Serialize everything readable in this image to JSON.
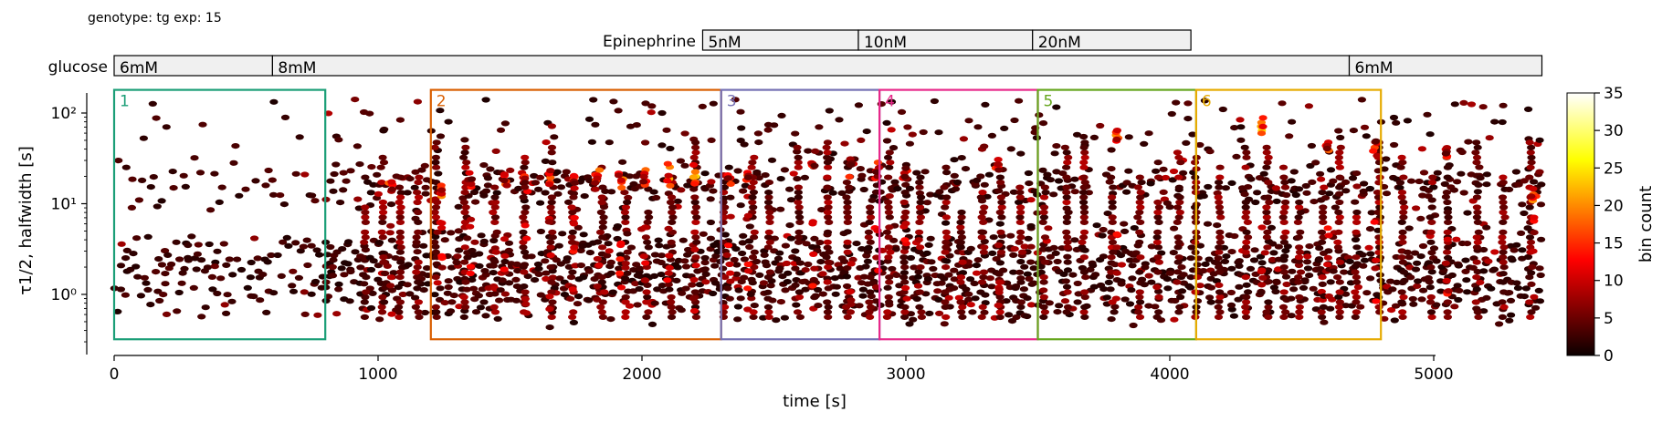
{
  "header": {
    "subtitle": "genotype: tg  exp: 15",
    "epinephrine_label": "Epinephrine",
    "glucose_label": "glucose"
  },
  "epinephrine_bar": [
    {
      "label": "5nM",
      "start": 2230,
      "end": 2820
    },
    {
      "label": "10nM",
      "start": 2820,
      "end": 3480
    },
    {
      "label": "20nM",
      "start": 3480,
      "end": 4080
    }
  ],
  "glucose_bar": [
    {
      "label": "6mM",
      "start": 0,
      "end": 600
    },
    {
      "label": "8mM",
      "start": 600,
      "end": 4680
    },
    {
      "label": "6mM",
      "start": 4680,
      "end": 5410
    }
  ],
  "colors": {
    "bar_fill": "#f0f0f0",
    "region_colors": [
      "#1b9e77",
      "#d95f02",
      "#7570b3",
      "#e7298a",
      "#66a61e",
      "#e6ab02"
    ]
  },
  "colormap": "hot",
  "chart_data": {
    "type": "heatmap",
    "xlabel": "time [s]",
    "ylabel": "τ1/2, halfwidth [s]",
    "xlim": [
      -100,
      5420
    ],
    "ylim": [
      0.25,
      200
    ],
    "y_scale": "log",
    "x_ticks": [
      0,
      1000,
      2000,
      3000,
      4000,
      5000
    ],
    "x_tick_labels": [
      "0",
      "1000",
      "2000",
      "3000",
      "4000",
      "5000"
    ],
    "y_ticks": [
      1,
      10,
      100
    ],
    "y_tick_labels": [
      "10⁰",
      "10¹",
      "10²"
    ],
    "colorbar": {
      "label": "bin count",
      "range": [
        0,
        35
      ],
      "ticks": [
        0,
        5,
        10,
        15,
        20,
        25,
        30,
        35
      ],
      "tick_labels": [
        "0",
        "5",
        "10",
        "15",
        "20",
        "25",
        "30",
        "35"
      ]
    },
    "regions": [
      {
        "label": "1",
        "x_start": 0,
        "x_end": 800
      },
      {
        "label": "2",
        "x_start": 1200,
        "x_end": 2300
      },
      {
        "label": "3",
        "x_start": 2300,
        "x_end": 2900
      },
      {
        "label": "4",
        "x_start": 2900,
        "x_end": 3500
      },
      {
        "label": "5",
        "x_start": 3500,
        "x_end": 4100
      },
      {
        "label": "6",
        "x_start": 4100,
        "x_end": 4800
      }
    ],
    "region_y_range": [
      0.32,
      180
    ],
    "hotspots": [
      {
        "t": 1050,
        "h": 16,
        "c": 18
      },
      {
        "t": 1240,
        "h": 14,
        "c": 20
      },
      {
        "t": 1350,
        "h": 18,
        "c": 16
      },
      {
        "t": 1480,
        "h": 19,
        "c": 18
      },
      {
        "t": 1560,
        "h": 17,
        "c": 15
      },
      {
        "t": 1650,
        "h": 19,
        "c": 20
      },
      {
        "t": 1740,
        "h": 18,
        "c": 17
      },
      {
        "t": 1830,
        "h": 20,
        "c": 19
      },
      {
        "t": 1920,
        "h": 19,
        "c": 20
      },
      {
        "t": 2010,
        "h": 20,
        "c": 18
      },
      {
        "t": 2100,
        "h": 20,
        "c": 22
      },
      {
        "t": 2200,
        "h": 20,
        "c": 24
      },
      {
        "t": 2330,
        "h": 18,
        "c": 18
      },
      {
        "t": 2400,
        "h": 20,
        "c": 17
      },
      {
        "t": 2650,
        "h": 30,
        "c": 16
      },
      {
        "t": 2790,
        "h": 30,
        "c": 15
      },
      {
        "t": 2890,
        "h": 22,
        "c": 16
      },
      {
        "t": 3000,
        "h": 22,
        "c": 14
      },
      {
        "t": 3350,
        "h": 26,
        "c": 18
      },
      {
        "t": 3800,
        "h": 55,
        "c": 20
      },
      {
        "t": 4350,
        "h": 70,
        "c": 24
      },
      {
        "t": 4600,
        "h": 45,
        "c": 18
      },
      {
        "t": 4780,
        "h": 45,
        "c": 16
      },
      {
        "t": 5050,
        "h": 35,
        "c": 16
      },
      {
        "t": 5380,
        "h": 12,
        "c": 20
      }
    ]
  }
}
